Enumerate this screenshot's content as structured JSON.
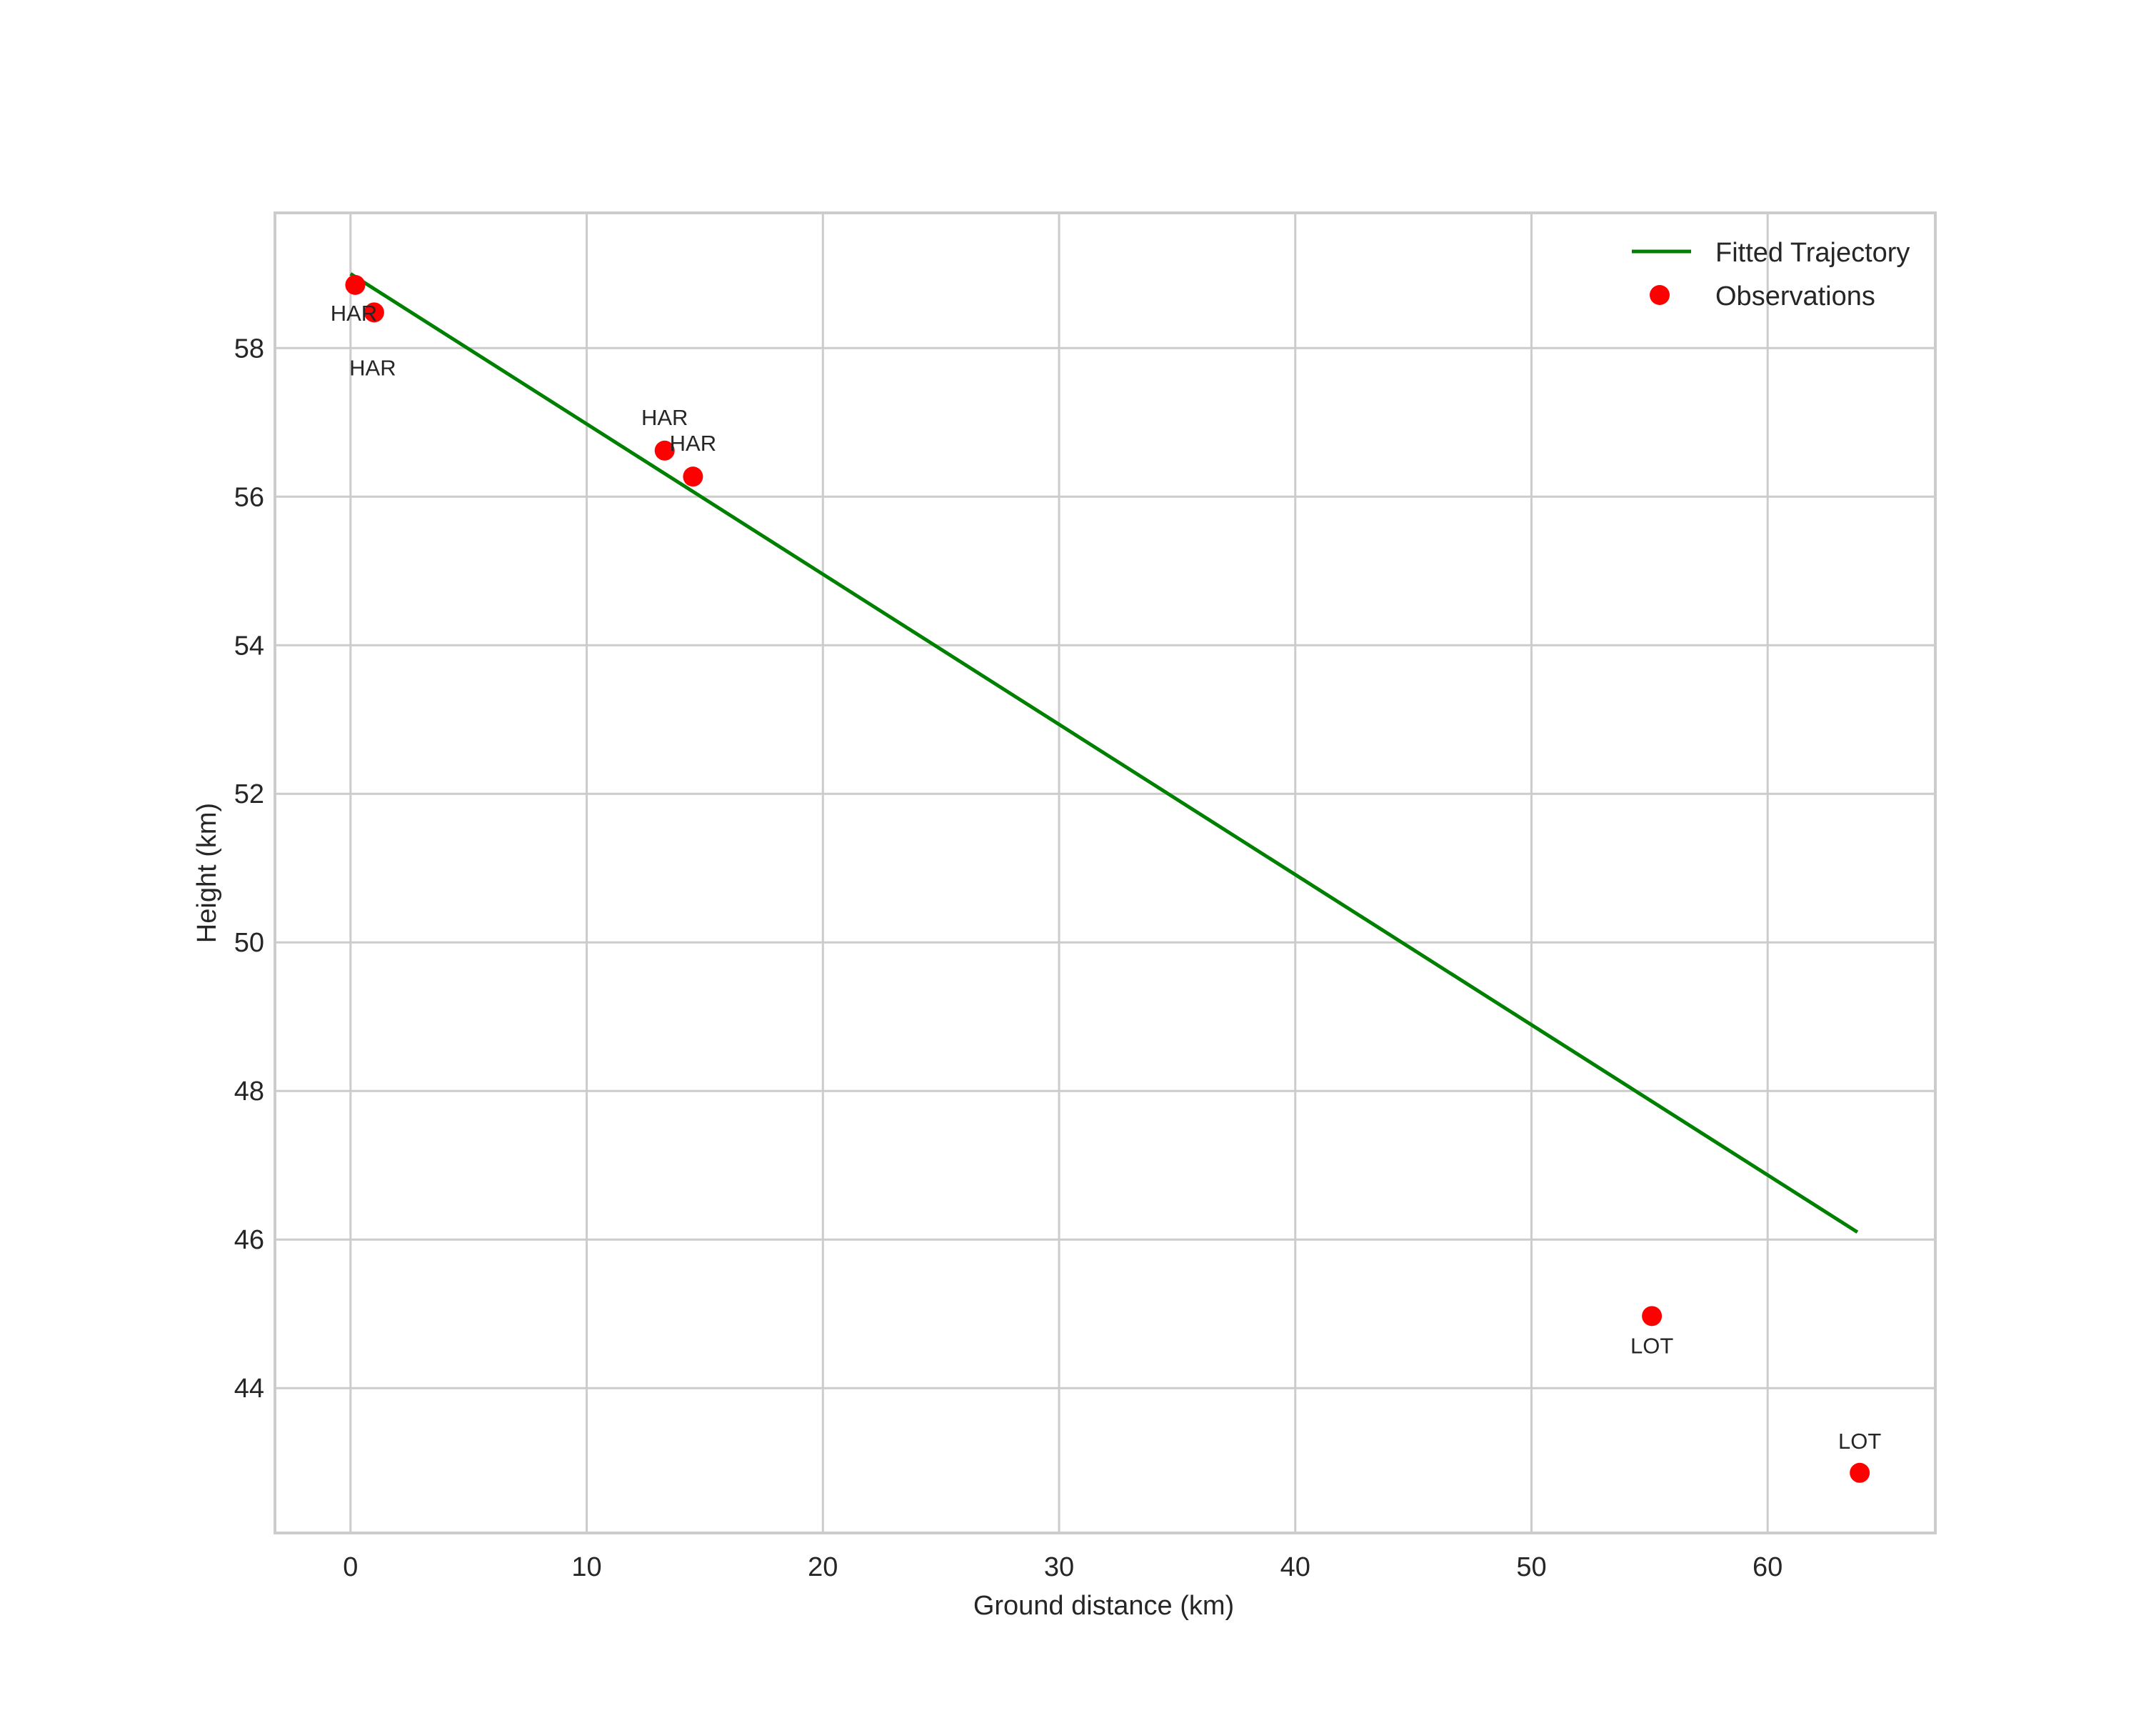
{
  "chart_data": {
    "type": "line",
    "title": "",
    "xlabel": "Ground distance (km)",
    "ylabel": "Height (km)",
    "xlim": [
      -3.2,
      67.1
    ],
    "ylim": [
      42.05,
      59.82
    ],
    "grid": true,
    "legend_position": "upper right",
    "x_ticks": [
      0,
      10,
      20,
      30,
      40,
      50,
      60
    ],
    "y_ticks": [
      44,
      46,
      48,
      50,
      52,
      54,
      56,
      58
    ],
    "series": [
      {
        "name": "Fitted Trajectory",
        "type": "line",
        "color": "#008000",
        "x": [
          0.0,
          63.8
        ],
        "y": [
          59.0,
          46.1
        ]
      },
      {
        "name": "Observations",
        "type": "scatter",
        "color": "#ff0000",
        "x": [
          0.2,
          1.0,
          13.3,
          14.5,
          55.1,
          63.9
        ],
        "y": [
          58.85,
          58.48,
          56.62,
          56.27,
          44.97,
          42.86
        ],
        "labels": [
          "HAR",
          "HAR",
          "HAR",
          "HAR",
          "LOT",
          "LOT"
        ]
      }
    ],
    "annotations": [
      {
        "text": "HAR",
        "x": 0.2,
        "y": 58.85,
        "position": "below"
      },
      {
        "text": "HAR",
        "x": 1.0,
        "y": 58.48,
        "position": "below"
      },
      {
        "text": "HAR",
        "x": 13.3,
        "y": 56.62,
        "position": "above"
      },
      {
        "text": "HAR",
        "x": 14.5,
        "y": 56.27,
        "position": "above"
      },
      {
        "text": "LOT",
        "x": 55.1,
        "y": 44.97,
        "position": "below"
      },
      {
        "text": "LOT",
        "x": 63.9,
        "y": 42.86,
        "position": "above"
      }
    ]
  },
  "legend": {
    "items": [
      {
        "label": "Fitted Trajectory",
        "marker": "line",
        "color": "#008000"
      },
      {
        "label": "Observations",
        "marker": "circle",
        "color": "#ff0000"
      }
    ]
  },
  "colors": {
    "grid": "#cccccc",
    "frame": "#cccccc",
    "text": "#262626",
    "background": "#ffffff"
  }
}
